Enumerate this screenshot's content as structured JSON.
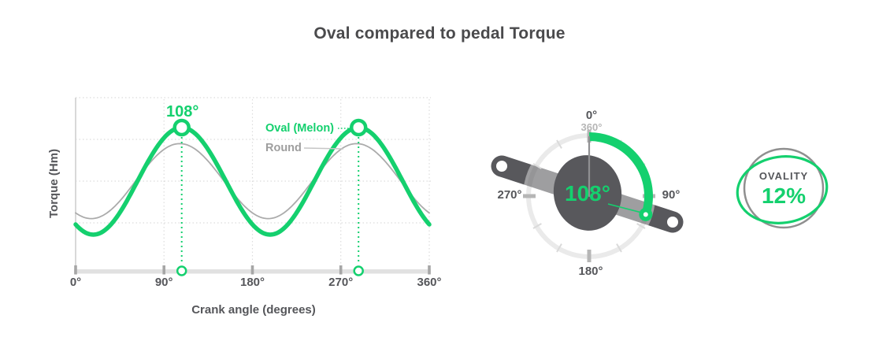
{
  "title": "Oval compared to pedal Torque",
  "colors": {
    "green": "#14d06e",
    "dark_text": "#55565a",
    "round_gray": "#ababab",
    "muted_text": "#b5b5b5"
  },
  "chart_data": {
    "type": "line",
    "title": "Oval compared to pedal Torque",
    "xlabel": "Crank angle (degrees)",
    "ylabel": "Torque (Hm)",
    "x_range_deg": [
      0,
      360
    ],
    "x_tick_labels": [
      "0°",
      "90°",
      "180°",
      "270°",
      "360°"
    ],
    "grid": "dotted",
    "legend_position": "inline-labels",
    "peak_annotation": "108°",
    "series": [
      {
        "name": "Oval (Melon)",
        "color": "#14d06e",
        "shape": "sinusoid",
        "period_deg": 180,
        "peak_deg": 108,
        "relative_amplitude": 1.0,
        "marked_peaks_deg": [
          108,
          288
        ]
      },
      {
        "name": "Round",
        "color": "#ababab",
        "shape": "sinusoid",
        "period_deg": 180,
        "peak_deg": 106,
        "relative_amplitude": 0.7
      }
    ]
  },
  "gauge": {
    "value_label": "108°",
    "arc_start_deg": 0,
    "arc_end_deg": 108,
    "labels": {
      "top": "0°",
      "top_sub": "360°",
      "right": "90°",
      "bottom": "180°",
      "left": "270°"
    }
  },
  "ovality_badge": {
    "label": "OVALITY",
    "value": "12%"
  }
}
